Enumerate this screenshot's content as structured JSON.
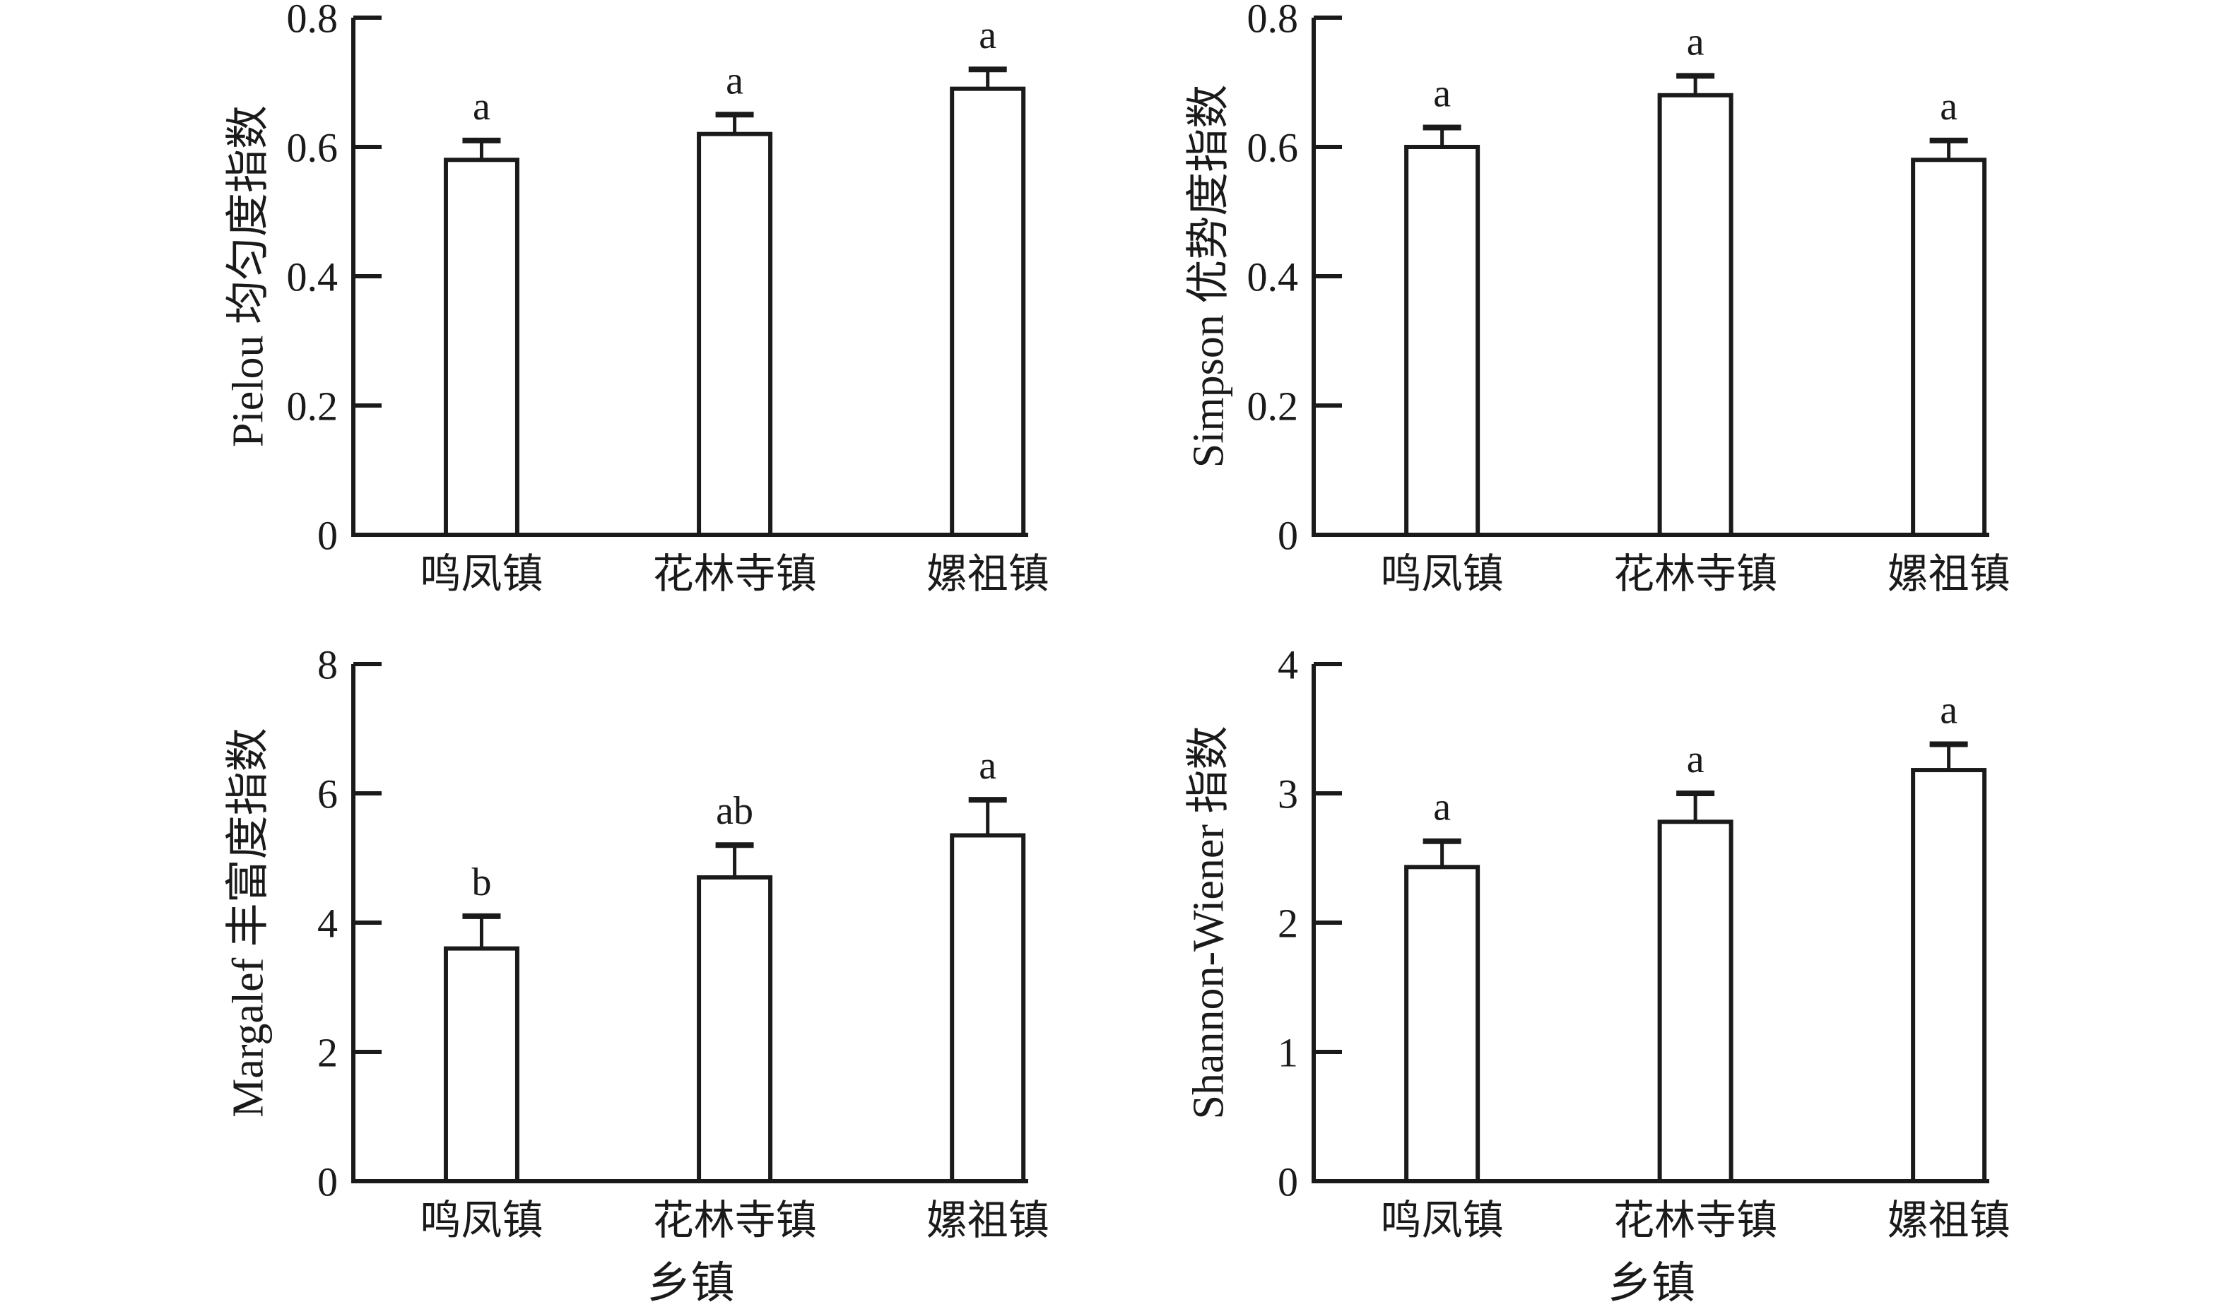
{
  "figure": {
    "background": "#ffffff",
    "ink_color": "#1a1a1a",
    "bar_fill": "#ffffff",
    "shared_categories": [
      "鸣凤镇",
      "花林寺镇",
      "嫘祖镇"
    ],
    "x_axis_title": "乡镇"
  },
  "chart_data": [
    {
      "id": "pielou-evenness",
      "type": "bar",
      "position": "top-left",
      "title": "",
      "ylabel": "Pielou 均匀度指数",
      "xlabel": "",
      "categories": [
        "鸣凤镇",
        "花林寺镇",
        "嫘祖镇"
      ],
      "values": [
        0.58,
        0.62,
        0.69
      ],
      "errors": [
        0.03,
        0.03,
        0.03
      ],
      "error_bars": "upper-only",
      "sig_letters": [
        "a",
        "a",
        "a"
      ],
      "ylim": [
        0,
        0.8
      ],
      "yticks": [
        0,
        0.2,
        0.4,
        0.6,
        0.8
      ],
      "ytick_labels": [
        "0",
        "0.2",
        "0.4",
        "0.6",
        "0.8"
      ],
      "grid": false,
      "legend": "none",
      "bar_fill": "#ffffff",
      "bar_border": "#1a1a1a"
    },
    {
      "id": "simpson-dominance",
      "type": "bar",
      "position": "top-right",
      "title": "",
      "ylabel": "Simpson 优势度指数",
      "xlabel": "",
      "categories": [
        "鸣凤镇",
        "花林寺镇",
        "嫘祖镇"
      ],
      "values": [
        0.6,
        0.68,
        0.58
      ],
      "errors": [
        0.03,
        0.03,
        0.03
      ],
      "error_bars": "upper-only",
      "sig_letters": [
        "a",
        "a",
        "a"
      ],
      "ylim": [
        0,
        0.8
      ],
      "yticks": [
        0,
        0.2,
        0.4,
        0.6,
        0.8
      ],
      "ytick_labels": [
        "0",
        "0.2",
        "0.4",
        "0.6",
        "0.8"
      ],
      "grid": false,
      "legend": "none",
      "bar_fill": "#ffffff",
      "bar_border": "#1a1a1a"
    },
    {
      "id": "margalef-richness",
      "type": "bar",
      "position": "bottom-left",
      "title": "",
      "ylabel": "Margalef 丰富度指数",
      "xlabel": "乡镇",
      "categories": [
        "鸣凤镇",
        "花林寺镇",
        "嫘祖镇"
      ],
      "values": [
        3.6,
        4.7,
        5.35
      ],
      "errors": [
        0.5,
        0.5,
        0.55
      ],
      "error_bars": "upper-only",
      "sig_letters": [
        "b",
        "ab",
        "a"
      ],
      "ylim": [
        0,
        8
      ],
      "yticks": [
        0,
        2,
        4,
        6,
        8
      ],
      "ytick_labels": [
        "0",
        "2",
        "4",
        "6",
        "8"
      ],
      "grid": false,
      "legend": "none",
      "bar_fill": "#ffffff",
      "bar_border": "#1a1a1a"
    },
    {
      "id": "shannon-wiener",
      "type": "bar",
      "position": "bottom-right",
      "title": "",
      "ylabel": "Shannon-Wiener 指数",
      "xlabel": "乡镇",
      "categories": [
        "鸣凤镇",
        "花林寺镇",
        "嫘祖镇"
      ],
      "values": [
        2.43,
        2.78,
        3.18
      ],
      "errors": [
        0.2,
        0.22,
        0.2
      ],
      "error_bars": "upper-only",
      "sig_letters": [
        "a",
        "a",
        "a"
      ],
      "ylim": [
        0,
        4
      ],
      "yticks": [
        0,
        1,
        2,
        3,
        4
      ],
      "ytick_labels": [
        "0",
        "1",
        "2",
        "3",
        "4"
      ],
      "grid": false,
      "legend": "none",
      "bar_fill": "#ffffff",
      "bar_border": "#1a1a1a"
    }
  ]
}
